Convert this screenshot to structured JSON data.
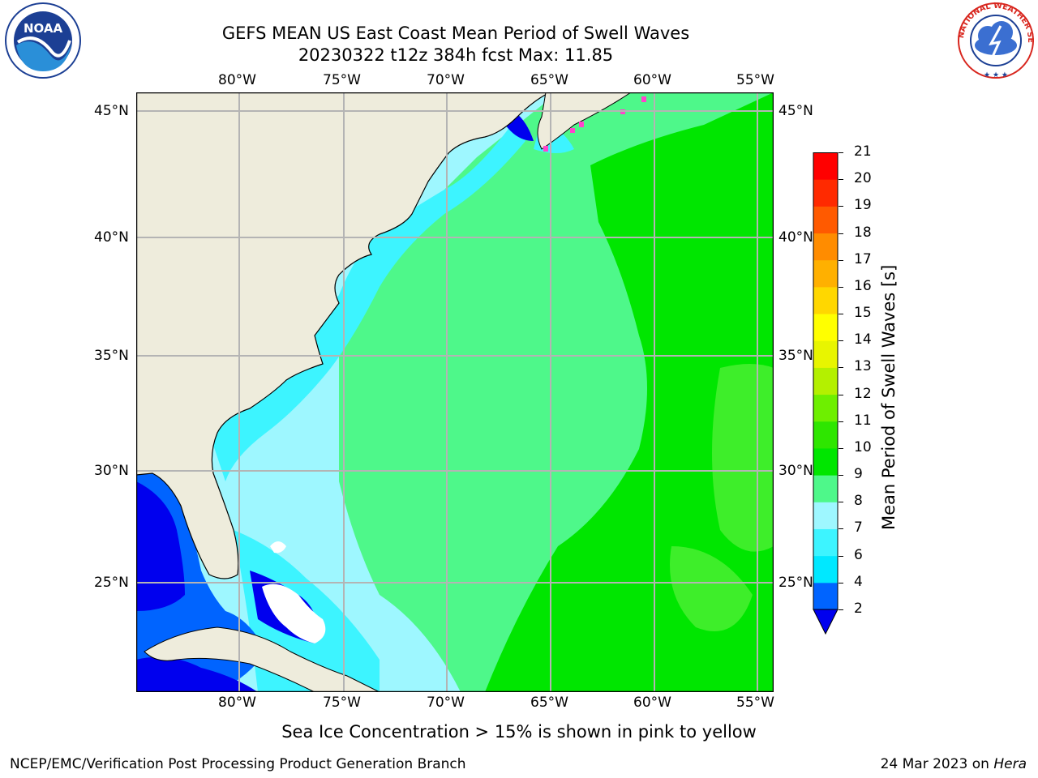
{
  "header": {
    "title_line1": "GEFS MEAN US East Coast Mean Period of Swell Waves",
    "title_line2": "20230322 t12z 384h fcst   Max: 11.85"
  },
  "logos": {
    "left": {
      "name": "noaa-logo",
      "text": "NOAA"
    },
    "right": {
      "name": "nws-logo",
      "ring_text": "NATIONAL WEATHER SERVICE"
    }
  },
  "map": {
    "lon_labels": [
      "80°W",
      "75°W",
      "70°W",
      "65°W",
      "60°W",
      "55°W"
    ],
    "lat_labels": [
      "45°N",
      "40°N",
      "35°N",
      "30°N",
      "25°N"
    ],
    "grid": true
  },
  "colorbar": {
    "label": "Mean Period of Swell Waves [s]",
    "ticks": [
      "2",
      "4",
      "6",
      "7",
      "8",
      "9",
      "10",
      "11",
      "12",
      "13",
      "14",
      "15",
      "16",
      "17",
      "18",
      "19",
      "20",
      "21"
    ],
    "colors": [
      "#0000ee",
      "#0064ff",
      "#00e8ff",
      "#3df4ff",
      "#9ef7ff",
      "#4ef88a",
      "#00e600",
      "#2ee600",
      "#6eef00",
      "#b4f000",
      "#e8f500",
      "#ffff00",
      "#ffd700",
      "#ffb000",
      "#ff8c00",
      "#ff5a00",
      "#ff2a00",
      "#ff0000"
    ],
    "extend": "min"
  },
  "notes": {
    "sea_ice": "Sea Ice Concentration > 15% is shown in pink to yellow"
  },
  "footer": {
    "left": "NCEP/EMC/Verification Post Processing Product Generation Branch",
    "date": "24 Mar 2023 on ",
    "host": "Hera"
  },
  "colors": {
    "land": "#eeecdc",
    "grid": "#b4b4b4"
  }
}
